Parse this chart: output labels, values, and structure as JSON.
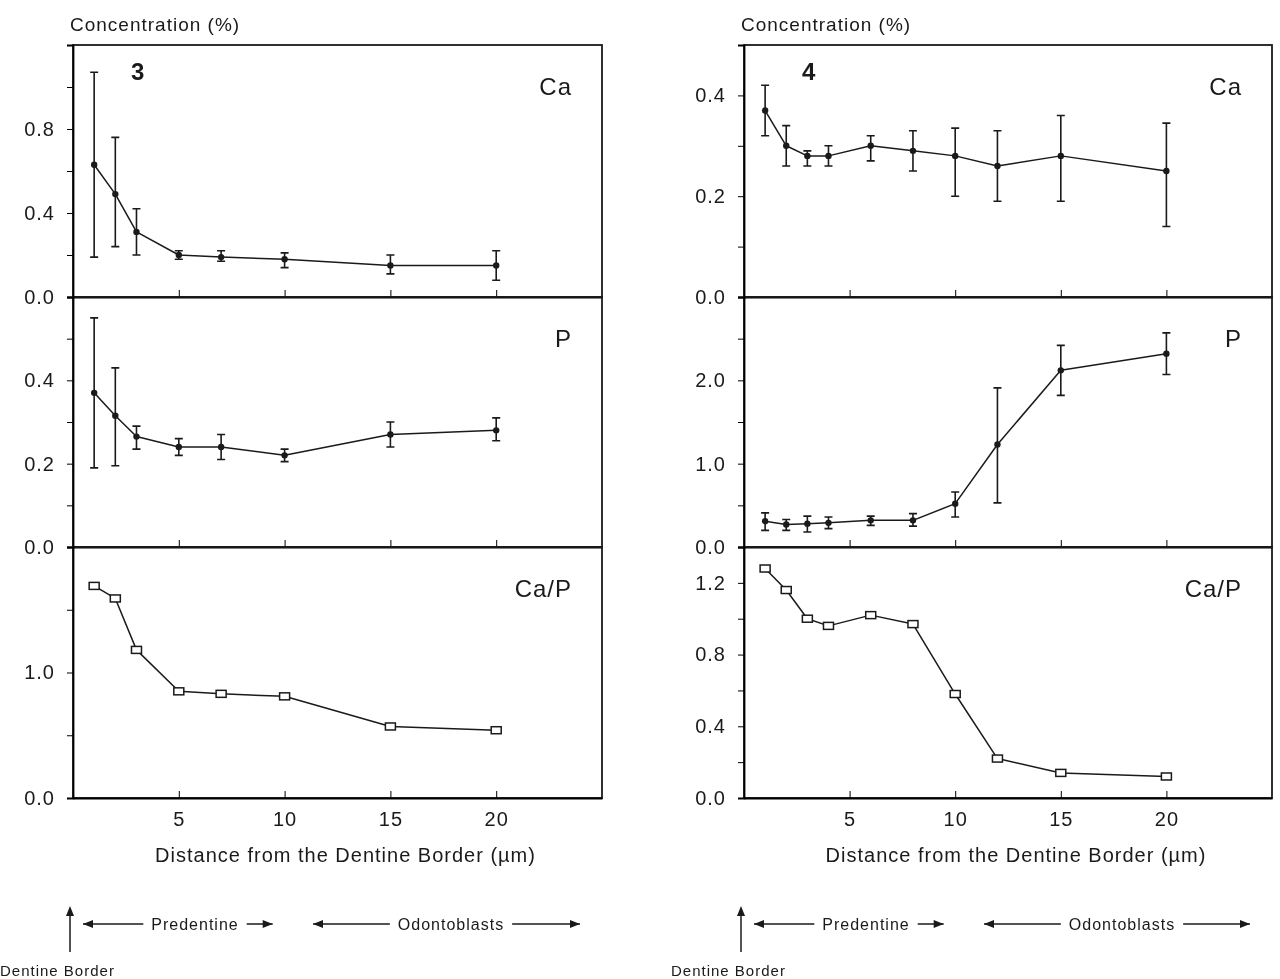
{
  "chart_data": [
    {
      "type": "line",
      "ylabel": "Concentration (%)",
      "annotations": [
        "3"
      ],
      "x": [
        1,
        2,
        3,
        5,
        7,
        10,
        15,
        20
      ],
      "xlim": [
        0,
        25
      ],
      "xticks": [
        5,
        10,
        15,
        20
      ],
      "ylim": [
        0,
        1.2
      ],
      "yticks": [
        {
          "value": 0,
          "label": "0.0"
        },
        {
          "value": 0.2,
          "label": null
        },
        0.4,
        {
          "value": 0.6,
          "label": null
        },
        0.8,
        {
          "value": 1.0,
          "label": null
        }
      ],
      "tick_labels": "y",
      "marker": "circle",
      "line_style": "solid",
      "series": [
        {
          "name": "Ca",
          "color": "#1a1a1a",
          "values": [
            0.63,
            0.49,
            0.31,
            0.2,
            0.19,
            0.18,
            0.15,
            0.15
          ],
          "errors": [
            [
              0.19,
              1.07
            ],
            [
              0.24,
              0.76
            ],
            [
              0.2,
              0.42
            ],
            [
              0.18,
              0.22
            ],
            [
              0.17,
              0.22
            ],
            [
              0.14,
              0.21
            ],
            [
              0.11,
              0.2
            ],
            [
              0.08,
              0.22
            ]
          ]
        }
      ]
    },
    {
      "type": "line",
      "x": [
        1,
        2,
        3,
        5,
        7,
        10,
        15,
        20
      ],
      "xlim": [
        0,
        25
      ],
      "xticks": [
        5,
        10,
        15,
        20
      ],
      "ylim": [
        0,
        0.6
      ],
      "yticks": [
        {
          "value": 0,
          "label": "0.0"
        },
        {
          "value": 0.1,
          "label": null
        },
        0.2,
        {
          "value": 0.3,
          "label": null
        },
        0.4,
        {
          "value": 0.5,
          "label": null
        }
      ],
      "tick_labels": "y",
      "marker": "circle",
      "line_style": "solid",
      "series": [
        {
          "name": "P",
          "color": "#1a1a1a",
          "values": [
            0.37,
            0.315,
            0.265,
            0.24,
            0.24,
            0.22,
            0.27,
            0.28
          ],
          "errors": [
            [
              0.19,
              0.55
            ],
            [
              0.195,
              0.43
            ],
            [
              0.235,
              0.29
            ],
            [
              0.22,
              0.26
            ],
            [
              0.21,
              0.27
            ],
            [
              0.205,
              0.235
            ],
            [
              0.24,
              0.3
            ],
            [
              0.255,
              0.31
            ]
          ]
        }
      ]
    },
    {
      "type": "line",
      "xlabel": "Distance from the Dentine Border (µm)",
      "annotations": [
        "Predentine",
        "Odontoblasts",
        "Dentine Border"
      ],
      "x": [
        1,
        2,
        3,
        5,
        7,
        10,
        15,
        20
      ],
      "xlim": [
        0,
        25
      ],
      "xticks": [
        5,
        10,
        15,
        20
      ],
      "ylim": [
        0,
        2.0
      ],
      "yticks": [
        {
          "value": 0,
          "label": "0.0"
        },
        {
          "value": 0.5,
          "label": null
        },
        {
          "value": 1.0,
          "label": "1.0"
        },
        {
          "value": 1.5,
          "label": null
        }
      ],
      "marker": "square",
      "line_style": "solid",
      "series": [
        {
          "name": "Ca/P",
          "color": "#1a1a1a",
          "values": [
            1.69,
            1.59,
            1.18,
            0.85,
            0.83,
            0.81,
            0.57,
            0.54
          ]
        }
      ]
    },
    {
      "type": "line",
      "ylabel": "Concentration (%)",
      "annotations": [
        "4"
      ],
      "x": [
        1,
        2,
        3,
        4,
        6,
        8,
        10,
        12,
        15,
        20
      ],
      "xlim": [
        0,
        25
      ],
      "xticks": [
        5,
        10,
        15,
        20
      ],
      "ylim": [
        0,
        0.5
      ],
      "yticks": [
        {
          "value": 0,
          "label": "0.0"
        },
        {
          "value": 0.1,
          "label": null
        },
        0.2,
        {
          "value": 0.3,
          "label": null
        },
        0.4
      ],
      "tick_labels": "y",
      "marker": "circle",
      "line_style": "solid",
      "series": [
        {
          "name": "Ca",
          "color": "#1a1a1a",
          "values": [
            0.37,
            0.3,
            0.28,
            0.28,
            0.3,
            0.29,
            0.28,
            0.26,
            0.28,
            0.25
          ],
          "errors": [
            [
              0.32,
              0.42
            ],
            [
              0.26,
              0.34
            ],
            [
              0.26,
              0.29
            ],
            [
              0.26,
              0.3
            ],
            [
              0.27,
              0.32
            ],
            [
              0.25,
              0.33
            ],
            [
              0.2,
              0.335
            ],
            [
              0.19,
              0.33
            ],
            [
              0.19,
              0.36
            ],
            [
              0.14,
              0.345
            ]
          ]
        }
      ]
    },
    {
      "type": "line",
      "x": [
        1,
        2,
        3,
        4,
        6,
        8,
        10,
        12,
        15,
        20
      ],
      "xlim": [
        0,
        25
      ],
      "xticks": [
        5,
        10,
        15,
        20
      ],
      "ylim": [
        0,
        3.0
      ],
      "yticks": [
        {
          "value": 0,
          "label": "0.0"
        },
        {
          "value": 0.5,
          "label": null
        },
        {
          "value": 1.0,
          "label": "1.0"
        },
        {
          "value": 1.5,
          "label": null
        },
        {
          "value": 2.0,
          "label": "2.0"
        },
        {
          "value": 2.5,
          "label": null
        }
      ],
      "tick_labels": "y",
      "marker": "circle",
      "line_style": "solid",
      "series": [
        {
          "name": "P",
          "color": "#1a1a1a",
          "values": [
            0.31,
            0.27,
            0.28,
            0.29,
            0.32,
            0.32,
            0.52,
            1.23,
            2.12,
            2.32
          ],
          "errors": [
            [
              0.2,
              0.41
            ],
            [
              0.2,
              0.33
            ],
            [
              0.18,
              0.37
            ],
            [
              0.22,
              0.36
            ],
            [
              0.26,
              0.37
            ],
            [
              0.25,
              0.4
            ],
            [
              0.36,
              0.66
            ],
            [
              0.53,
              1.91
            ],
            [
              1.82,
              2.42
            ],
            [
              2.07,
              2.57
            ]
          ]
        }
      ]
    },
    {
      "type": "line",
      "xlabel": "Distance from the Dentine Border (µm)",
      "annotations": [
        "Predentine",
        "Odontoblasts",
        "Dentine Border"
      ],
      "x": [
        1,
        2,
        3,
        4,
        6,
        8,
        10,
        12,
        15,
        20
      ],
      "xlim": [
        0,
        25
      ],
      "xticks": [
        5,
        10,
        15,
        20
      ],
      "ylim": [
        0,
        1.4
      ],
      "yticks": [
        {
          "value": 0,
          "label": "0.0"
        },
        {
          "value": 0.2,
          "label": null
        },
        0.4,
        {
          "value": 0.6,
          "label": null
        },
        0.8,
        {
          "value": 1.0,
          "label": null
        },
        1.2
      ],
      "marker": "square",
      "line_style": "solid",
      "series": [
        {
          "name": "Ca/P",
          "color": "#1a1a1a",
          "values": [
            1.28,
            1.16,
            1.0,
            0.96,
            1.02,
            0.97,
            0.58,
            0.22,
            0.14,
            0.12
          ]
        }
      ]
    }
  ]
}
